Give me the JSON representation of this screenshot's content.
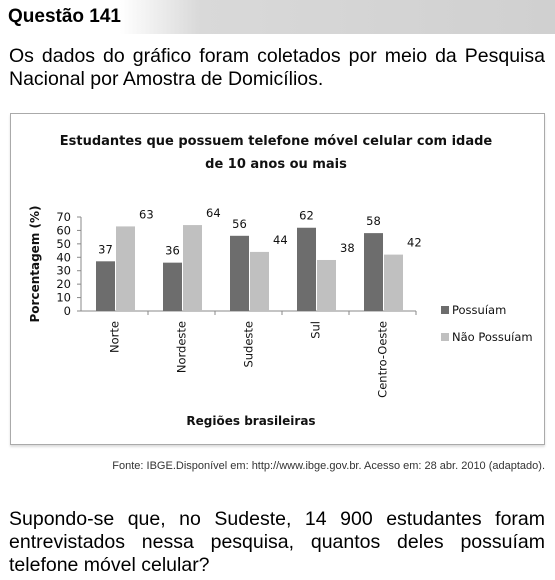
{
  "header": {
    "title": "Questão 141"
  },
  "intro": "Os dados do gráfico foram coletados por meio da Pesquisa Nacional por Amostra de Domicílios.",
  "chart_data": {
    "type": "bar",
    "title": [
      "Estudantes que possuem telefone móvel celular com idade",
      "de 10 anos ou mais"
    ],
    "x_label": "Regiões brasileiras",
    "y_label": "Porcentagem (%)",
    "categories": [
      "Norte",
      "Nordeste",
      "Sudeste",
      "Sul",
      "Centro-Oeste"
    ],
    "series": [
      {
        "name": "Possuíam",
        "color": "#6d6d6d",
        "values": [
          37,
          36,
          56,
          62,
          58
        ]
      },
      {
        "name": "Não Possuíam",
        "color": "#c0c0c0",
        "values": [
          63,
          64,
          44,
          38,
          42
        ]
      }
    ],
    "ylim": [
      0,
      70
    ],
    "yticks": [
      0,
      10,
      20,
      30,
      40,
      50,
      60,
      70
    ],
    "grid": false,
    "legend": "right"
  },
  "source": "Fonte: IBGE.Disponível em: http://www.ibge.gov.br. Acesso em: 28 abr. 2010 (adaptado).",
  "question": "Supondo-se que, no Sudeste, 14 900 estudantes foram entrevistados nessa pesquisa, quantos deles possuíam telefone móvel celular?"
}
